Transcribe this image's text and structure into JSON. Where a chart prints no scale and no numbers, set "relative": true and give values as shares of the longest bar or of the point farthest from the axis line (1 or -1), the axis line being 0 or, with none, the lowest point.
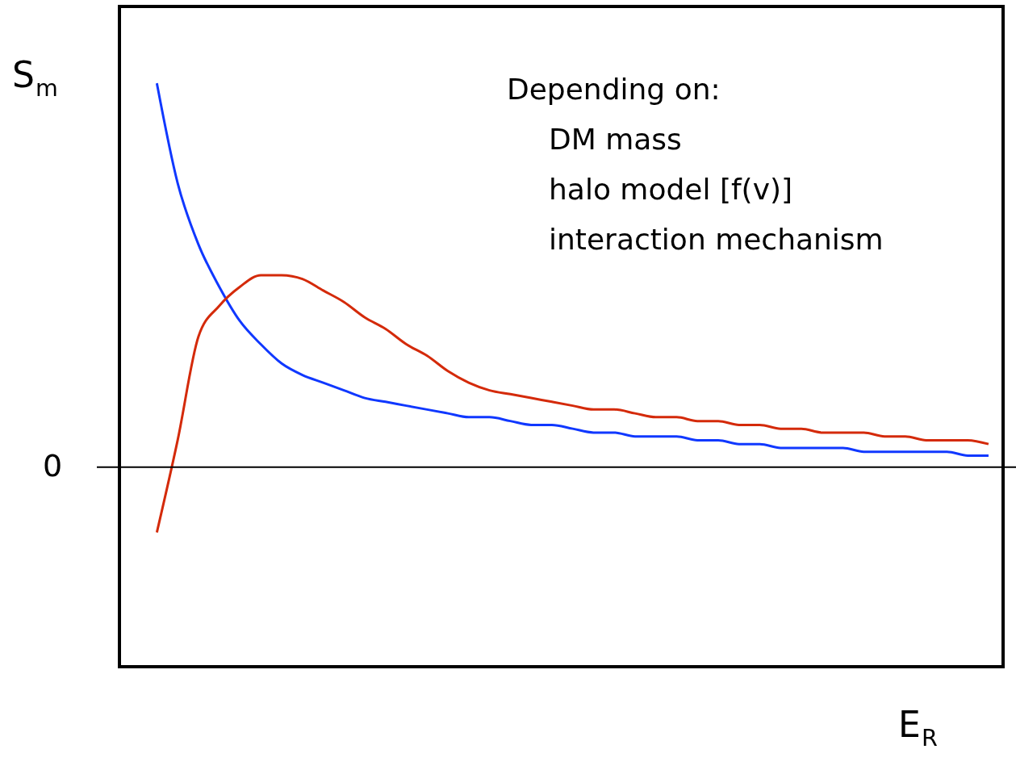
{
  "chart_data": {
    "type": "line",
    "relative": true,
    "xlabel": "E$_{R}$",
    "ylabel": "S$_{m}$",
    "categories": [
      null,
      null,
      null,
      null,
      null,
      null,
      null,
      null,
      null,
      null,
      null,
      null,
      null,
      null,
      null,
      null,
      null,
      null,
      null,
      null,
      null,
      null,
      null,
      null,
      null,
      null,
      null,
      null,
      null,
      null,
      null,
      null,
      null,
      null,
      null,
      null,
      null,
      null,
      null,
      null,
      null
    ],
    "series": [
      {
        "color": "#1038ff",
        "values": [
          1.0,
          0.74,
          0.58,
          0.47,
          0.38,
          0.32,
          0.27,
          0.24,
          0.22,
          0.2,
          0.18,
          0.17,
          0.16,
          0.15,
          0.14,
          0.13,
          0.13,
          0.12,
          0.11,
          0.11,
          0.1,
          0.09,
          0.09,
          0.08,
          0.08,
          0.08,
          0.07,
          0.07,
          0.06,
          0.06,
          0.05,
          0.05,
          0.05,
          0.05,
          0.04,
          0.04,
          0.04,
          0.04,
          0.04,
          0.03,
          0.03
        ]
      },
      {
        "color": "#d42a0a",
        "values": [
          -0.17,
          0.07,
          0.34,
          0.42,
          0.47,
          0.5,
          0.5,
          0.49,
          0.46,
          0.43,
          0.39,
          0.36,
          0.32,
          0.29,
          0.25,
          0.22,
          0.2,
          0.19,
          0.18,
          0.17,
          0.16,
          0.15,
          0.15,
          0.14,
          0.13,
          0.13,
          0.12,
          0.12,
          0.11,
          0.11,
          0.1,
          0.1,
          0.09,
          0.09,
          0.09,
          0.08,
          0.08,
          0.07,
          0.07,
          0.07,
          0.06
        ]
      }
    ],
    "ref_lines": [
      {
        "axis": "y",
        "value": 0,
        "label": "0"
      }
    ],
    "annotations": [
      "Depending on:",
      "DM mass",
      "halo model [f(v)]",
      "interaction mechanism"
    ],
    "marker": "none"
  }
}
